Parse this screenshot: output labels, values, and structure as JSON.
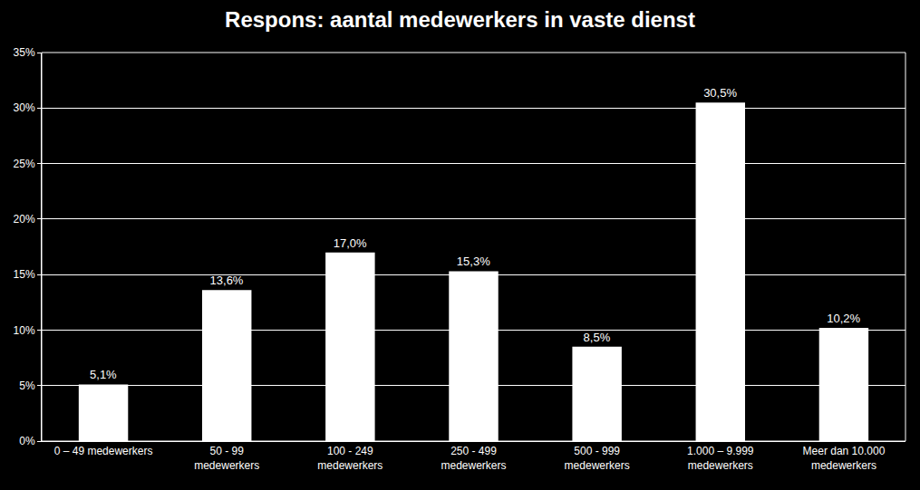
{
  "chart_data": {
    "type": "bar",
    "title": "Respons: aantal medewerkers in vaste dienst",
    "categories": [
      "0 – 49 medewerkers",
      "50 - 99 medewerkers",
      "100 - 249 medewerkers",
      "250 - 499 medewerkers",
      "500 - 999 medewerkers",
      "1.000 – 9.999 medewerkers",
      "Meer dan 10.000 medewerkers"
    ],
    "values": [
      5.1,
      13.6,
      17.0,
      15.3,
      8.5,
      30.5,
      10.2
    ],
    "value_labels": [
      "5,1%",
      "13,6%",
      "17,0%",
      "15,3%",
      "8,5%",
      "30,5%",
      "10,2%"
    ],
    "color": "#ffffff",
    "ylim": [
      0,
      35
    ],
    "yticks": [
      {
        "value": 0,
        "label": "0%"
      },
      {
        "value": 5,
        "label": "5%"
      },
      {
        "value": 10,
        "label": "10%"
      },
      {
        "value": 15,
        "label": "15%"
      },
      {
        "value": 20,
        "label": "20%"
      },
      {
        "value": 25,
        "label": "25%"
      },
      {
        "value": 30,
        "label": "30%"
      },
      {
        "value": 35,
        "label": "35%"
      }
    ],
    "grid": true,
    "data_labels": true
  }
}
